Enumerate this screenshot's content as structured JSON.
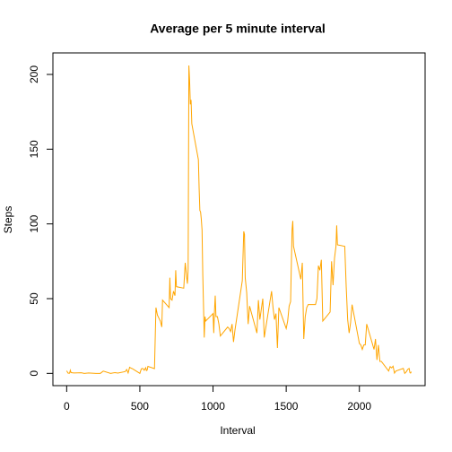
{
  "chart_data": {
    "type": "line",
    "title": "Average per 5 minute interval",
    "x_label": "Interval",
    "y_label": "Steps",
    "x": [
      0,
      10,
      20,
      25,
      30,
      50,
      100,
      110,
      120,
      150,
      200,
      230,
      250,
      300,
      330,
      350,
      400,
      410,
      420,
      430,
      440,
      450,
      500,
      510,
      520,
      530,
      540,
      545,
      550,
      555,
      600,
      610,
      620,
      630,
      640,
      650,
      655,
      700,
      705,
      710,
      720,
      730,
      740,
      745,
      750,
      800,
      810,
      820,
      825,
      830,
      835,
      840,
      845,
      850,
      855,
      900,
      905,
      910,
      915,
      920,
      925,
      930,
      935,
      940,
      945,
      950,
      1000,
      1005,
      1010,
      1015,
      1020,
      1030,
      1040,
      1050,
      1100,
      1110,
      1120,
      1130,
      1140,
      1150,
      1200,
      1210,
      1215,
      1220,
      1230,
      1240,
      1250,
      1300,
      1310,
      1320,
      1330,
      1340,
      1350,
      1400,
      1410,
      1420,
      1430,
      1440,
      1450,
      1500,
      1510,
      1520,
      1530,
      1540,
      1545,
      1550,
      1600,
      1610,
      1620,
      1630,
      1640,
      1650,
      1700,
      1710,
      1720,
      1730,
      1740,
      1750,
      1800,
      1810,
      1820,
      1830,
      1840,
      1845,
      1850,
      1900,
      1910,
      1920,
      1930,
      1940,
      1950,
      2000,
      2010,
      2020,
      2030,
      2040,
      2050,
      2100,
      2110,
      2120,
      2130,
      2140,
      2150,
      2200,
      2210,
      2220,
      2230,
      2240,
      2250,
      2300,
      2310,
      2320,
      2330,
      2340,
      2345,
      2350,
      2355
    ],
    "series": [
      {
        "name": "Steps",
        "color": "#FFA500",
        "values": [
          1.7,
          0.1,
          0.1,
          2.1,
          0.5,
          0.3,
          0.4,
          0.2,
          0,
          0.3,
          0,
          0,
          1.5,
          0,
          0.5,
          0.2,
          1.2,
          2.6,
          0.3,
          4.1,
          3.5,
          3.1,
          0,
          3.0,
          3.3,
          2.1,
          3.8,
          1.9,
          2.2,
          4.7,
          3.2,
          44,
          39,
          37,
          35,
          31,
          49,
          44,
          64,
          50,
          49,
          55,
          52,
          69,
          58,
          57,
          74,
          64,
          60,
          70,
          206,
          196,
          180,
          183,
          167,
          143,
          124,
          109,
          108,
          103,
          96,
          66,
          45,
          24,
          38,
          35,
          40,
          27,
          42,
          52,
          38,
          38,
          33,
          25,
          31,
          30,
          28,
          33,
          21,
          29,
          62,
          95,
          93,
          64,
          54,
          33,
          45,
          27,
          49,
          36,
          43,
          50,
          24,
          55,
          44,
          36,
          40,
          17,
          44,
          30,
          35,
          45,
          48,
          96,
          102,
          85,
          63,
          74,
          23,
          38,
          44,
          46,
          46,
          50,
          72,
          69,
          76,
          35,
          41,
          75,
          59,
          77,
          85,
          99,
          86,
          85,
          58,
          36,
          27,
          34,
          46,
          20,
          19,
          16,
          19,
          19,
          33,
          16,
          23,
          9,
          19,
          8,
          8,
          1.6,
          4.5,
          3.7,
          4.8,
          0.2,
          1.6,
          3.3,
          0,
          1,
          2.6,
          3.3,
          0.6,
          0.2,
          1.1
        ]
      }
    ],
    "xlim": [
      -94,
      2449
    ],
    "ylim": [
      -8.2,
      214.4
    ],
    "xticks": [
      0,
      500,
      1000,
      1500,
      2000
    ],
    "yticks": [
      0,
      50,
      100,
      150,
      200
    ]
  }
}
